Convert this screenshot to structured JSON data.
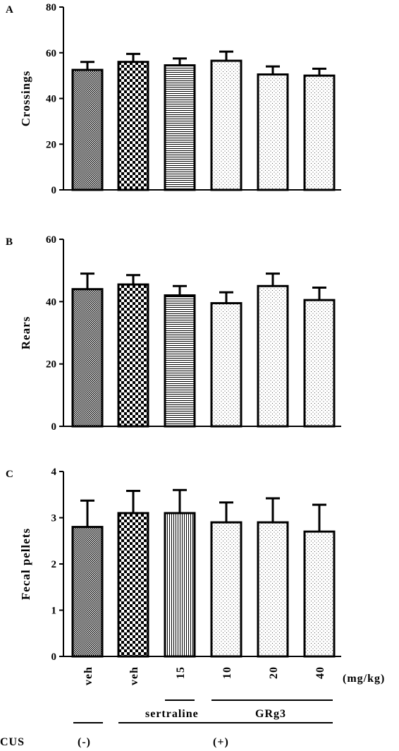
{
  "chart_data": [
    {
      "type": "bar",
      "panel_label": "A",
      "ylabel": "Crossings",
      "ylim": [
        0,
        80
      ],
      "yticks": [
        0,
        20,
        40,
        60,
        80
      ],
      "values": [
        52.5,
        56,
        54.5,
        56.5,
        50.5,
        50
      ],
      "errors": [
        3.5,
        3.5,
        3,
        4,
        3.5,
        3
      ]
    },
    {
      "type": "bar",
      "panel_label": "B",
      "ylabel": "Rears",
      "ylim": [
        0,
        60
      ],
      "yticks": [
        0,
        20,
        40,
        60
      ],
      "values": [
        44,
        45.5,
        42,
        39.5,
        45,
        40.5
      ],
      "errors": [
        5,
        3,
        3,
        3.5,
        4,
        4
      ]
    },
    {
      "type": "bar",
      "panel_label": "C",
      "ylabel": "Fecal pellets",
      "ylim": [
        0,
        4
      ],
      "yticks": [
        0,
        1,
        2,
        3,
        4
      ],
      "values": [
        2.8,
        3.1,
        3.1,
        2.9,
        2.9,
        2.7
      ],
      "errors": [
        0.57,
        0.48,
        0.5,
        0.43,
        0.52,
        0.58
      ]
    }
  ],
  "categories": [
    "veh",
    "veh",
    "15",
    "10",
    "20",
    "40"
  ],
  "patterns": [
    "dense-check",
    "checker",
    "hlines",
    "dots",
    "dots",
    "dots"
  ],
  "unit_label": "(mg/kg)",
  "drug_labels": {
    "sertraline": "sertraline",
    "grg3": "GRg3"
  },
  "cus": {
    "label": "CUS",
    "minus": "(-)",
    "plus": "(+)"
  }
}
